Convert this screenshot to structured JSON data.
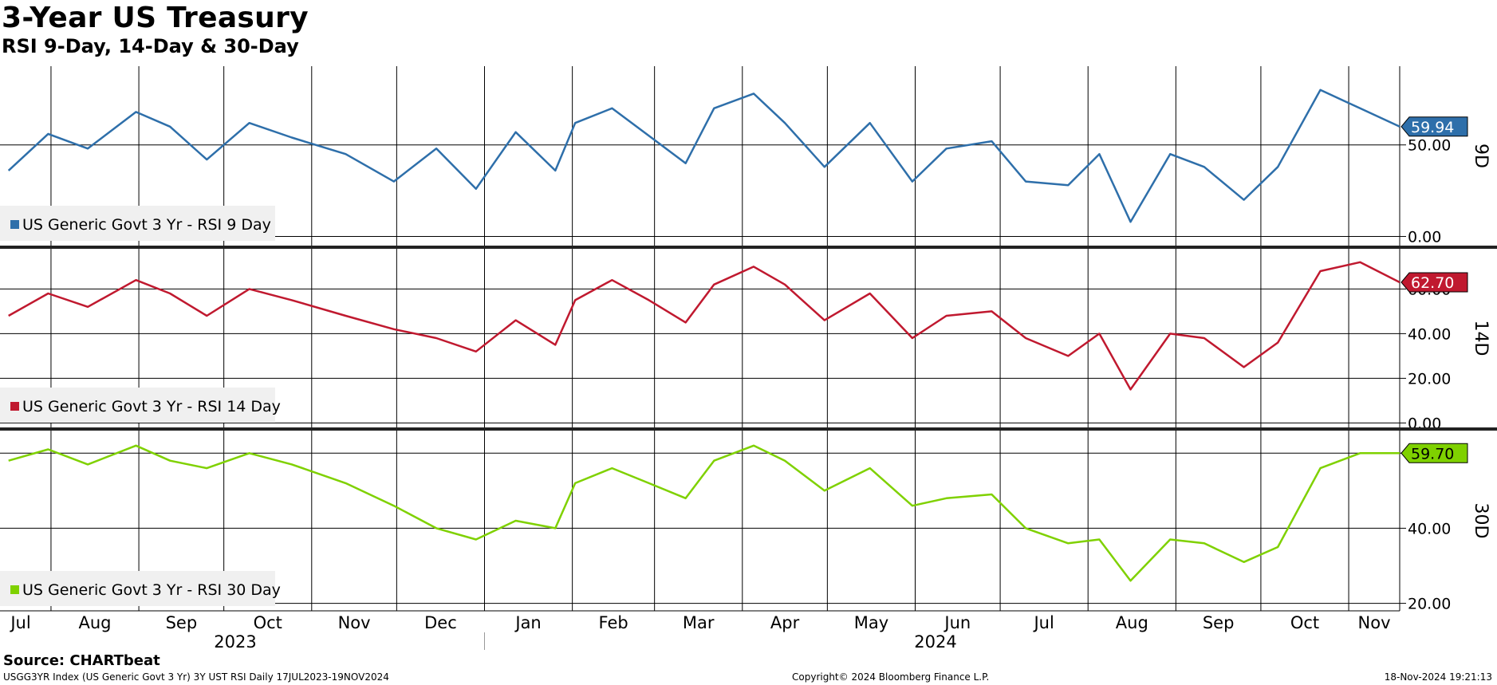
{
  "header": {
    "title": "3-Year US Treasury",
    "subtitle": "RSI 9-Day, 14-Day & 30-Day"
  },
  "footer": {
    "source": "Source: CHARTbeat",
    "left": "USGG3YR Index (US Generic Govt 3 Yr) 3Y UST RSI  Daily 17JUL2023-19NOV2024",
    "center": "Copyright© 2024 Bloomberg Finance L.P.",
    "right": "18-Nov-2024 19:21:13"
  },
  "colors": {
    "rsi9": "#2e6faa",
    "rsi14": "#c0192f",
    "rsi30": "#7fd100",
    "grid": "#000000",
    "legend_bg": "#f0f0f0"
  },
  "chart_data": [
    {
      "type": "line",
      "panel_label": "9D",
      "legend": "US Generic Govt 3 Yr - RSI 9 Day",
      "last_value_label": "59.94",
      "ylim": [
        -5,
        93
      ],
      "yticks": [
        0,
        50
      ],
      "ytick_labels": [
        "0.00",
        "50.00"
      ],
      "x": [
        "2023-07-17",
        "2023-07-31",
        "2023-08-14",
        "2023-08-31",
        "2023-09-12",
        "2023-09-25",
        "2023-10-10",
        "2023-10-25",
        "2023-11-13",
        "2023-11-30",
        "2023-12-15",
        "2023-12-29",
        "2024-01-12",
        "2024-01-26",
        "2024-02-02",
        "2024-02-15",
        "2024-02-28",
        "2024-03-12",
        "2024-03-22",
        "2024-04-05",
        "2024-04-16",
        "2024-04-30",
        "2024-05-16",
        "2024-05-31",
        "2024-06-12",
        "2024-06-28",
        "2024-07-10",
        "2024-07-25",
        "2024-08-05",
        "2024-08-16",
        "2024-08-30",
        "2024-09-11",
        "2024-09-25",
        "2024-10-07",
        "2024-10-22",
        "2024-11-05",
        "2024-11-19"
      ],
      "y": [
        36,
        56,
        48,
        68,
        60,
        42,
        62,
        54,
        45,
        30,
        48,
        26,
        57,
        36,
        62,
        70,
        55,
        40,
        70,
        78,
        62,
        38,
        62,
        30,
        48,
        52,
        30,
        28,
        45,
        8,
        45,
        38,
        20,
        38,
        80,
        70,
        60
      ]
    },
    {
      "type": "line",
      "panel_label": "14D",
      "legend": "US Generic Govt 3 Yr - RSI 14 Day",
      "last_value_label": "62.70",
      "ylim": [
        -2,
        78
      ],
      "yticks": [
        0,
        20,
        40,
        60
      ],
      "ytick_labels": [
        "0.00",
        "20.00",
        "40.00",
        "60.00"
      ],
      "x": [
        "2023-07-17",
        "2023-07-31",
        "2023-08-14",
        "2023-08-31",
        "2023-09-12",
        "2023-09-25",
        "2023-10-10",
        "2023-10-25",
        "2023-11-13",
        "2023-11-30",
        "2023-12-15",
        "2023-12-29",
        "2024-01-12",
        "2024-01-26",
        "2024-02-02",
        "2024-02-15",
        "2024-02-28",
        "2024-03-12",
        "2024-03-22",
        "2024-04-05",
        "2024-04-16",
        "2024-04-30",
        "2024-05-16",
        "2024-05-31",
        "2024-06-12",
        "2024-06-28",
        "2024-07-10",
        "2024-07-25",
        "2024-08-05",
        "2024-08-16",
        "2024-08-30",
        "2024-09-11",
        "2024-09-25",
        "2024-10-07",
        "2024-10-22",
        "2024-11-05",
        "2024-11-19"
      ],
      "y": [
        48,
        58,
        52,
        64,
        58,
        48,
        60,
        55,
        48,
        42,
        38,
        32,
        46,
        35,
        55,
        64,
        55,
        45,
        62,
        70,
        62,
        46,
        58,
        38,
        48,
        50,
        38,
        30,
        40,
        15,
        40,
        38,
        25,
        36,
        68,
        72,
        63
      ]
    },
    {
      "type": "line",
      "panel_label": "30D",
      "legend": "US Generic Govt 3 Yr - RSI 30 Day",
      "last_value_label": "59.70",
      "ylim": [
        18,
        66
      ],
      "yticks": [
        20,
        40,
        60
      ],
      "ytick_labels": [
        "20.00",
        "40.00"
      ],
      "x": [
        "2023-07-17",
        "2023-07-31",
        "2023-08-14",
        "2023-08-31",
        "2023-09-12",
        "2023-09-25",
        "2023-10-10",
        "2023-10-25",
        "2023-11-13",
        "2023-11-30",
        "2023-12-15",
        "2023-12-29",
        "2024-01-12",
        "2024-01-26",
        "2024-02-02",
        "2024-02-15",
        "2024-02-28",
        "2024-03-12",
        "2024-03-22",
        "2024-04-05",
        "2024-04-16",
        "2024-04-30",
        "2024-05-16",
        "2024-05-31",
        "2024-06-12",
        "2024-06-28",
        "2024-07-10",
        "2024-07-25",
        "2024-08-05",
        "2024-08-16",
        "2024-08-30",
        "2024-09-11",
        "2024-09-25",
        "2024-10-07",
        "2024-10-22",
        "2024-11-05",
        "2024-11-19"
      ],
      "y": [
        58,
        61,
        57,
        62,
        58,
        56,
        60,
        57,
        52,
        46,
        40,
        37,
        42,
        40,
        52,
        56,
        52,
        48,
        58,
        62,
        58,
        50,
        56,
        46,
        48,
        49,
        40,
        36,
        37,
        26,
        37,
        36,
        31,
        35,
        56,
        60,
        60
      ]
    }
  ],
  "x_axis": {
    "months": [
      "Jul",
      "Aug",
      "Sep",
      "Oct",
      "Nov",
      "Dec",
      "Jan",
      "Feb",
      "Mar",
      "Apr",
      "May",
      "Jun",
      "Jul",
      "Aug",
      "Sep",
      "Oct",
      "Nov"
    ],
    "month_starts": [
      "2023-07-01",
      "2023-08-01",
      "2023-09-01",
      "2023-10-01",
      "2023-11-01",
      "2023-12-01",
      "2024-01-01",
      "2024-02-01",
      "2024-03-01",
      "2024-04-01",
      "2024-05-01",
      "2024-06-01",
      "2024-07-01",
      "2024-08-01",
      "2024-09-01",
      "2024-10-01",
      "2024-11-01"
    ],
    "years": [
      "2023",
      "2024"
    ],
    "range": [
      "2023-07-14",
      "2024-11-19"
    ]
  }
}
